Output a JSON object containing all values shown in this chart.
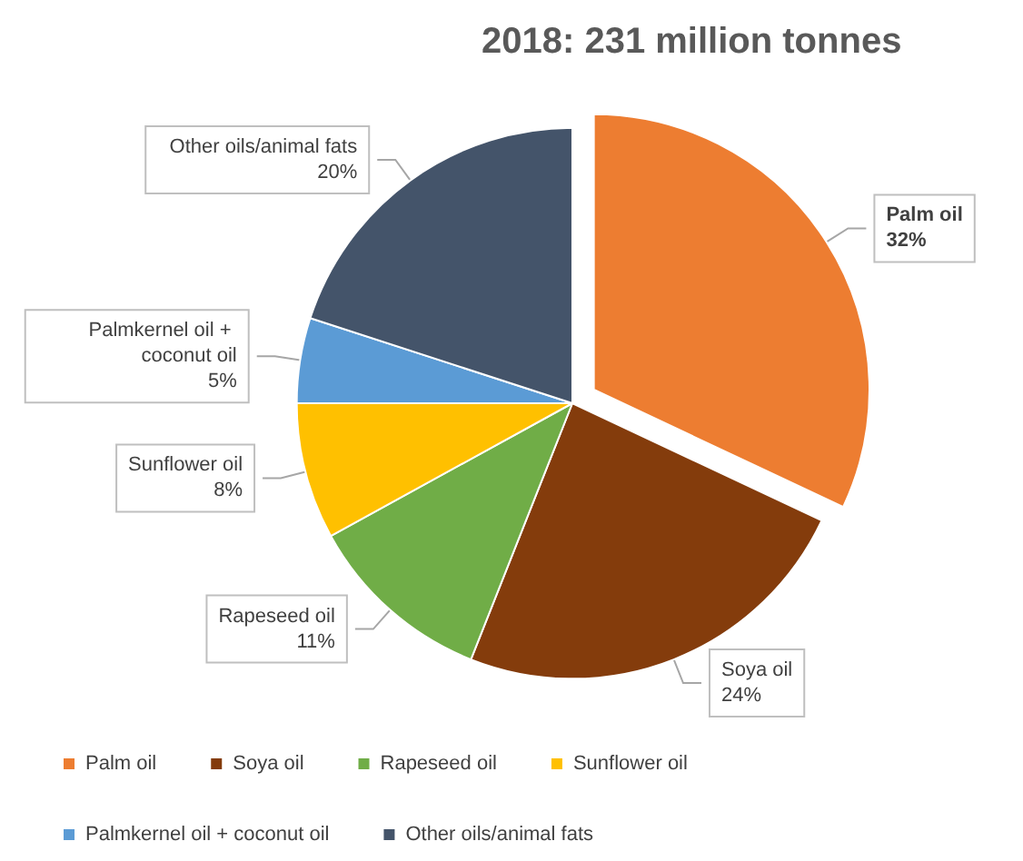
{
  "chart_data": {
    "type": "pie",
    "title": "2018: 231 million tonnes",
    "categories": [
      "Palm oil",
      "Soya oil",
      "Rapeseed oil",
      "Sunflower oil",
      "Palmkernel oil + coconut oil",
      "Other oils/animal fats"
    ],
    "values": [
      32,
      24,
      11,
      8,
      5,
      20
    ],
    "value_labels": [
      "32%",
      "24%",
      "11%",
      "8%",
      "5%",
      "20%"
    ],
    "colors": [
      "#ed7d31",
      "#843c0c",
      "#70ad47",
      "#ffc000",
      "#5b9bd5",
      "#44546a"
    ],
    "legend": "bottom"
  }
}
